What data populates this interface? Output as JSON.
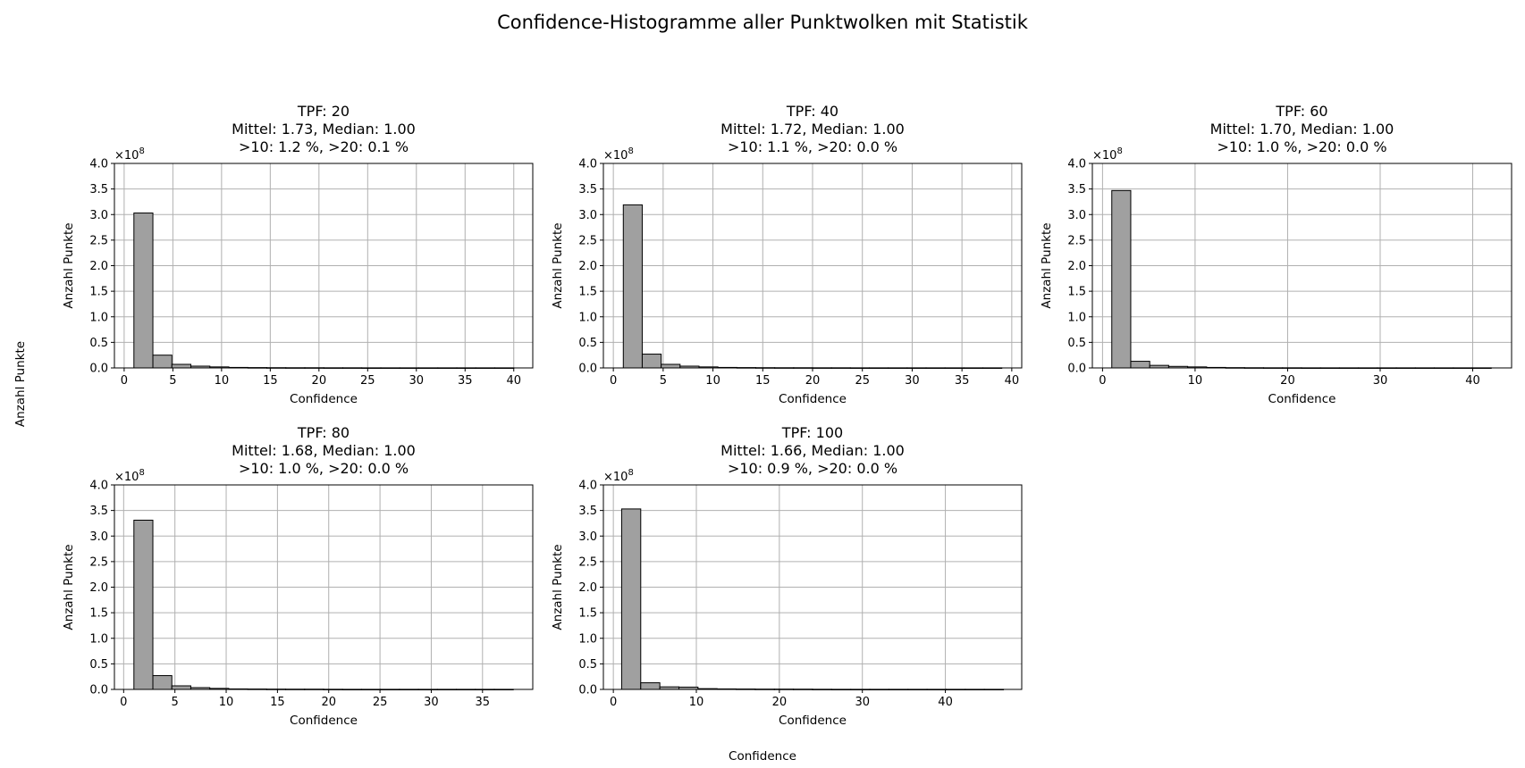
{
  "figure": {
    "title": "Confidence-Histogramme aller Punktwolken mit Statistik",
    "shared_ylabel": "Anzahl Punkte",
    "shared_xlabel": "Confidence"
  },
  "chart_data": [
    {
      "type": "bar",
      "title_lines": [
        "TPF: 20",
        "Mittel: 1.73, Median: 1.00",
        ">10: 1.2 %, >20: 0.1 %"
      ],
      "xlabel": "Confidence",
      "ylabel": "Anzahl Punkte",
      "y_multiplier": "×10^8",
      "xlim": [
        -1,
        41.95
      ],
      "ylim": [
        0,
        4.0
      ],
      "xticks": [
        0,
        5,
        10,
        15,
        20,
        25,
        30,
        35,
        40
      ],
      "yticks": [
        0.0,
        0.5,
        1.0,
        1.5,
        2.0,
        2.5,
        3.0,
        3.5,
        4.0
      ],
      "bin_start": 1.0,
      "bin_width": 1.95,
      "values": [
        3.03,
        0.25,
        0.07,
        0.035,
        0.02,
        0.01,
        0.007,
        0.005,
        0.004,
        0.004,
        0.003,
        0.003,
        0.002,
        0.002,
        0.002,
        0.002,
        0.002,
        0.002,
        0.002,
        0.002
      ],
      "grid": true
    },
    {
      "type": "bar",
      "title_lines": [
        "TPF: 40",
        "Mittel: 1.72, Median: 1.00",
        ">10: 1.1 %, >20: 0.0 %"
      ],
      "xlabel": "Confidence",
      "ylabel": "Anzahl Punkte",
      "y_multiplier": "×10^8",
      "xlim": [
        -1,
        41
      ],
      "ylim": [
        0,
        4.0
      ],
      "xticks": [
        0,
        5,
        10,
        15,
        20,
        25,
        30,
        35,
        40
      ],
      "yticks": [
        0.0,
        0.5,
        1.0,
        1.5,
        2.0,
        2.5,
        3.0,
        3.5,
        4.0
      ],
      "bin_start": 1.0,
      "bin_width": 1.9,
      "values": [
        3.19,
        0.27,
        0.07,
        0.035,
        0.02,
        0.01,
        0.007,
        0.005,
        0.004,
        0.004,
        0.003,
        0.003,
        0.002,
        0.002,
        0.002,
        0.002,
        0.002,
        0.002,
        0.002,
        0.002
      ],
      "grid": true
    },
    {
      "type": "bar",
      "title_lines": [
        "TPF: 60",
        "Mittel: 1.70, Median: 1.00",
        ">10: 1.0 %, >20: 0.0 %"
      ],
      "xlabel": "Confidence",
      "ylabel": "Anzahl Punkte",
      "y_multiplier": "×10^8",
      "xlim": [
        -1.1,
        44.2
      ],
      "ylim": [
        0,
        4.0
      ],
      "xticks": [
        0,
        10,
        20,
        30,
        40
      ],
      "yticks": [
        0.0,
        0.5,
        1.0,
        1.5,
        2.0,
        2.5,
        3.0,
        3.5,
        4.0
      ],
      "bin_start": 1.0,
      "bin_width": 2.05,
      "values": [
        3.47,
        0.13,
        0.05,
        0.03,
        0.02,
        0.01,
        0.006,
        0.004,
        0.003,
        0.003,
        0.002,
        0.002,
        0.002,
        0.002,
        0.002,
        0.002,
        0.002,
        0.002,
        0.002,
        0.002
      ],
      "grid": true
    },
    {
      "type": "bar",
      "title_lines": [
        "TPF: 80",
        "Mittel: 1.68, Median: 1.00",
        ">10: 1.0 %, >20: 0.0 %"
      ],
      "xlabel": "Confidence",
      "ylabel": "Anzahl Punkte",
      "y_multiplier": "×10^8",
      "xlim": [
        -0.9,
        39.9
      ],
      "ylim": [
        0,
        4.0
      ],
      "xticks": [
        0,
        5,
        10,
        15,
        20,
        25,
        30,
        35
      ],
      "yticks": [
        0.0,
        0.5,
        1.0,
        1.5,
        2.0,
        2.5,
        3.0,
        3.5,
        4.0
      ],
      "bin_start": 1.0,
      "bin_width": 1.85,
      "values": [
        3.31,
        0.27,
        0.07,
        0.035,
        0.02,
        0.01,
        0.008,
        0.006,
        0.005,
        0.005,
        0.003,
        0.002,
        0.002,
        0.002,
        0.002,
        0.002,
        0.002,
        0.002,
        0.002,
        0.002
      ],
      "grid": true
    },
    {
      "type": "bar",
      "title_lines": [
        "TPF: 100",
        "Mittel: 1.66, Median: 1.00",
        ">10: 0.9 %, >20: 0.0 %"
      ],
      "xlabel": "Confidence",
      "ylabel": "Anzahl Punkte",
      "y_multiplier": "×10^8",
      "xlim": [
        -1.2,
        49.2
      ],
      "ylim": [
        0,
        4.0
      ],
      "xticks": [
        0,
        10,
        20,
        30,
        40
      ],
      "yticks": [
        0.0,
        0.5,
        1.0,
        1.5,
        2.0,
        2.5,
        3.0,
        3.5,
        4.0
      ],
      "bin_start": 1.0,
      "bin_width": 2.3,
      "values": [
        3.53,
        0.13,
        0.05,
        0.045,
        0.015,
        0.01,
        0.008,
        0.006,
        0.006,
        0.005,
        0.003,
        0.002,
        0.002,
        0.002,
        0.002,
        0.002,
        0.002,
        0.002,
        0.002,
        0.002
      ],
      "grid": true
    }
  ],
  "colors": {
    "bar_fill": "#a0a0a0",
    "bar_edge": "#000000",
    "grid": "#b0b0b0",
    "axis": "#000000"
  }
}
